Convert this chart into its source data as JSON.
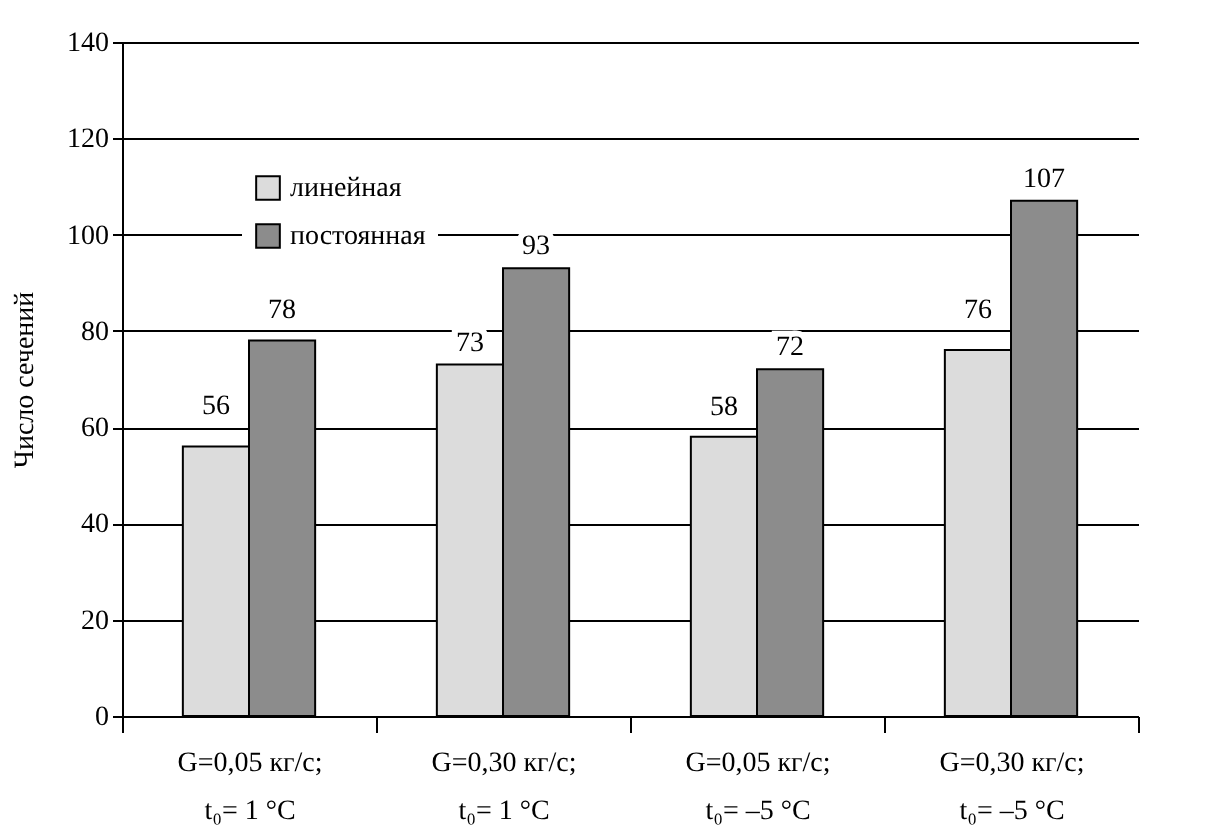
{
  "chart_data": {
    "type": "bar",
    "ylabel": "Число сечений",
    "categories": [
      "G=0,05 кг/с;\nt₀=   1 °C",
      "G=0,30 кг/с;\nt₀=   1 °C",
      "G=0,05 кг/с;\nt₀= –5 °C",
      "G=0,30 кг/с;\nt₀= –5 °C"
    ],
    "series": [
      {
        "name": "линейная",
        "color": "#dcdcdc",
        "values": [
          56,
          73,
          58,
          76
        ]
      },
      {
        "name": "постоянная",
        "color": "#8c8c8c",
        "values": [
          78,
          93,
          72,
          107
        ]
      }
    ],
    "ylim": [
      0,
      140
    ],
    "yticks": [
      0,
      20,
      40,
      60,
      80,
      100,
      120,
      140
    ],
    "grid": "y",
    "legend": "top left",
    "data_labels": true
  }
}
